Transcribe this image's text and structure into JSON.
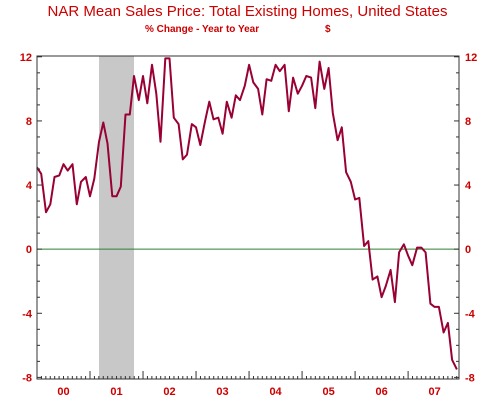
{
  "chart_data": {
    "type": "line",
    "title": "NAR Mean Sales Price: Total Existing Homes, United States",
    "subtitle": "% Change - Year to Year",
    "unit": "$",
    "xlabel": "",
    "ylabel": "",
    "ylim": [
      -8,
      12
    ],
    "yticks": [
      "12",
      "8",
      "4",
      "0",
      "-4",
      "-8"
    ],
    "ytick_values": [
      12,
      8,
      4,
      0,
      -4,
      -8
    ],
    "xticks": [
      "00",
      "01",
      "02",
      "03",
      "04",
      "05",
      "06",
      "07"
    ],
    "x_start_year": 2000,
    "x_end_year": 2007.96,
    "recession_shading": [
      2001.17,
      2001.83
    ],
    "grid": false,
    "zero_line": true,
    "colors": {
      "line": "#990033",
      "text": "#cc0000",
      "zero_line": "#2e7d32",
      "recession": "#c8c8c8"
    },
    "series": [
      {
        "name": "",
        "x": [
          2000.0,
          2000.08,
          2000.17,
          2000.25,
          2000.33,
          2000.42,
          2000.5,
          2000.58,
          2000.67,
          2000.75,
          2000.83,
          2000.92,
          2001.0,
          2001.08,
          2001.17,
          2001.25,
          2001.33,
          2001.42,
          2001.5,
          2001.58,
          2001.67,
          2001.75,
          2001.83,
          2001.92,
          2002.0,
          2002.08,
          2002.17,
          2002.25,
          2002.33,
          2002.42,
          2002.5,
          2002.58,
          2002.67,
          2002.75,
          2002.83,
          2002.92,
          2003.0,
          2003.08,
          2003.17,
          2003.25,
          2003.33,
          2003.42,
          2003.5,
          2003.58,
          2003.67,
          2003.75,
          2003.83,
          2003.92,
          2004.0,
          2004.08,
          2004.17,
          2004.25,
          2004.33,
          2004.42,
          2004.5,
          2004.58,
          2004.67,
          2004.75,
          2004.83,
          2004.92,
          2005.0,
          2005.08,
          2005.17,
          2005.25,
          2005.33,
          2005.42,
          2005.5,
          2005.58,
          2005.67,
          2005.75,
          2005.83,
          2005.92,
          2006.0,
          2006.08,
          2006.17,
          2006.25,
          2006.33,
          2006.42,
          2006.5,
          2006.58,
          2006.67,
          2006.75,
          2006.83,
          2006.92,
          2007.0,
          2007.08,
          2007.17,
          2007.25,
          2007.33,
          2007.42,
          2007.5,
          2007.58,
          2007.67,
          2007.75,
          2007.83,
          2007.92
        ],
        "values": [
          5.1,
          4.7,
          2.3,
          2.8,
          4.5,
          4.6,
          5.3,
          4.9,
          5.3,
          2.8,
          4.2,
          4.5,
          3.3,
          4.4,
          6.7,
          7.9,
          6.6,
          3.3,
          3.3,
          3.9,
          8.4,
          8.4,
          10.8,
          9.3,
          10.8,
          9.1,
          11.5,
          9.7,
          6.7,
          11.9,
          11.9,
          8.2,
          7.8,
          5.6,
          5.9,
          7.8,
          7.6,
          6.5,
          8.0,
          9.2,
          8.1,
          8.2,
          7.2,
          9.2,
          8.2,
          9.6,
          9.3,
          10.2,
          11.5,
          10.4,
          10.0,
          8.4,
          10.6,
          10.5,
          11.5,
          11.1,
          11.5,
          8.6,
          10.7,
          9.7,
          10.2,
          10.8,
          10.7,
          8.8,
          11.7,
          10.0,
          11.3,
          8.5,
          6.8,
          7.6,
          4.8,
          4.2,
          3.1,
          3.2,
          0.2,
          0.5,
          -1.9,
          -1.7,
          -3.0,
          -2.3,
          -1.3,
          -3.3,
          -0.2,
          0.3,
          -0.4,
          -1.0,
          0.1,
          0.1,
          -0.2,
          -3.4,
          -3.6,
          -3.6,
          -5.2,
          -4.6,
          -6.9,
          -7.5
        ]
      }
    ]
  }
}
